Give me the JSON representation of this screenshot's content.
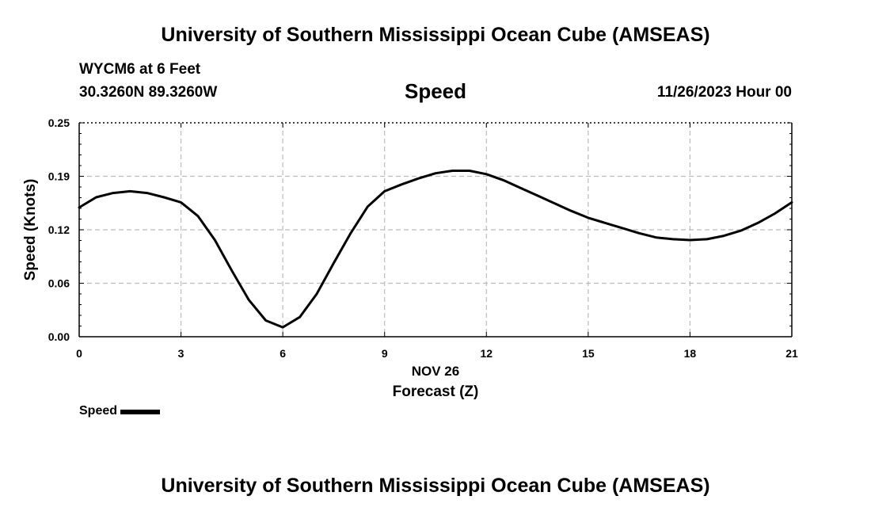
{
  "header": {
    "title": "University of Southern Mississippi Ocean Cube (AMSEAS)",
    "station": "WYCM6 at 6 Feet",
    "coords": "30.3260N  89.3260W",
    "subtitle": "Speed",
    "datetime": "11/26/2023 Hour 00"
  },
  "footer": {
    "title": "University of Southern Mississippi Ocean Cube (AMSEAS)"
  },
  "legend": {
    "label": "Speed"
  },
  "chart_data": {
    "type": "line",
    "title": "Speed",
    "xlabel": "Forecast (Z)",
    "xsublabel": "NOV 26",
    "ylabel": "Speed (Knots)",
    "xlim": [
      0,
      21
    ],
    "ylim": [
      0,
      0.25
    ],
    "xticks": [
      0,
      3,
      6,
      9,
      12,
      15,
      18,
      21
    ],
    "xtick_labels": [
      "0",
      "3",
      "6",
      "9",
      "12",
      "15",
      "18",
      "21"
    ],
    "yticks": [
      0,
      0.0625,
      0.125,
      0.1875,
      0.25
    ],
    "ytick_labels": [
      "0.00",
      "0.06",
      "0.12",
      "0.19",
      "0.25"
    ],
    "grid": true,
    "line_color": "#000000",
    "grid_color": "#bbbbbb",
    "series": [
      {
        "name": "Speed",
        "x": [
          0,
          0.5,
          1,
          1.5,
          2,
          2.5,
          3,
          3.5,
          4,
          4.5,
          5,
          5.5,
          6,
          6.5,
          7,
          7.5,
          8,
          8.5,
          9,
          9.5,
          10,
          10.5,
          11,
          11.5,
          12,
          12.5,
          13,
          13.5,
          14,
          14.5,
          15,
          15.5,
          16,
          16.5,
          17,
          17.5,
          18,
          18.5,
          19,
          19.5,
          20,
          20.5,
          21
        ],
        "values": [
          0.151,
          0.163,
          0.168,
          0.17,
          0.168,
          0.163,
          0.157,
          0.141,
          0.113,
          0.077,
          0.043,
          0.019,
          0.011,
          0.023,
          0.05,
          0.086,
          0.121,
          0.152,
          0.17,
          0.178,
          0.185,
          0.191,
          0.194,
          0.194,
          0.19,
          0.183,
          0.174,
          0.165,
          0.156,
          0.147,
          0.139,
          0.133,
          0.127,
          0.121,
          0.116,
          0.114,
          0.113,
          0.114,
          0.118,
          0.124,
          0.133,
          0.144,
          0.157
        ]
      }
    ]
  }
}
